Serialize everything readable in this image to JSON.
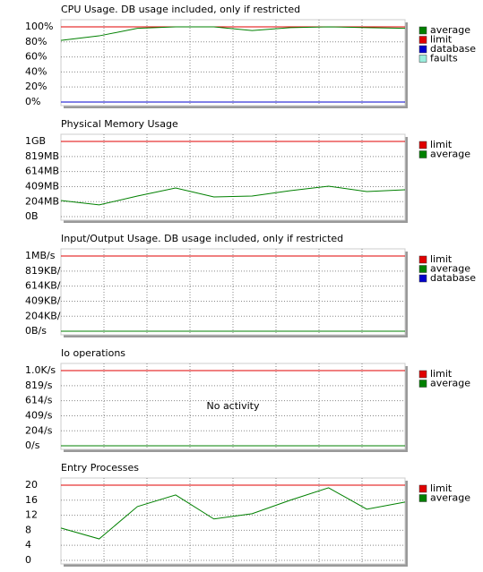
{
  "chart_data": [
    {
      "type": "line",
      "title": "CPU Usage. DB usage included, only if restricted",
      "categories": [
        null,
        null,
        null,
        null,
        null,
        null,
        null,
        null,
        null,
        null
      ],
      "series": [
        {
          "name": "average",
          "color": "#008000",
          "values": [
            82,
            88,
            98,
            100,
            100,
            95,
            99,
            100,
            99,
            98
          ]
        },
        {
          "name": "limit",
          "color": "#e00000",
          "values": [
            100,
            100,
            100,
            100,
            100,
            100,
            100,
            100,
            100,
            100
          ]
        },
        {
          "name": "database",
          "color": "#0000cc",
          "values": [
            0,
            0,
            0,
            0,
            0,
            0,
            0,
            0,
            0,
            0
          ]
        },
        {
          "name": "faults",
          "color": "#99eedd",
          "values": [
            0,
            0,
            0,
            0,
            0,
            0,
            0,
            0,
            0,
            0
          ]
        }
      ],
      "ylim": [
        -4.8,
        109.5
      ],
      "yticks": [
        {
          "value": 0,
          "label": "0%"
        },
        {
          "value": 20,
          "label": "20%"
        },
        {
          "value": 40,
          "label": "40%"
        },
        {
          "value": 60,
          "label": "60%"
        },
        {
          "value": 80,
          "label": "80%"
        },
        {
          "value": 100,
          "label": "100%"
        }
      ],
      "grid": true,
      "legend": "right"
    },
    {
      "type": "line",
      "title": "Physical Memory Usage",
      "categories": [
        null,
        null,
        null,
        null,
        null,
        null,
        null,
        null,
        null,
        null
      ],
      "series": [
        {
          "name": "limit",
          "color": "#e00000",
          "values": [
            1024,
            1024,
            1024,
            1024,
            1024,
            1024,
            1024,
            1024,
            1024,
            1024
          ]
        },
        {
          "name": "average",
          "color": "#008000",
          "values": [
            219,
            160,
            280,
            390,
            268,
            280,
            354,
            415,
            341,
            366
          ]
        }
      ],
      "ylim": [
        -49,
        1122
      ],
      "yticks": [
        {
          "value": 0,
          "label": "0B"
        },
        {
          "value": 204,
          "label": "204MB"
        },
        {
          "value": 409,
          "label": "409MB"
        },
        {
          "value": 614,
          "label": "614MB"
        },
        {
          "value": 819,
          "label": "819MB"
        },
        {
          "value": 1024,
          "label": "1GB"
        }
      ],
      "grid": true,
      "legend": "right"
    },
    {
      "type": "line",
      "title": "Input/Output Usage. DB usage included, only if restricted",
      "categories": [
        null,
        null,
        null,
        null,
        null,
        null,
        null,
        null,
        null,
        null
      ],
      "series": [
        {
          "name": "limit",
          "color": "#e00000",
          "values": [
            1024,
            1024,
            1024,
            1024,
            1024,
            1024,
            1024,
            1024,
            1024,
            1024
          ]
        },
        {
          "name": "average",
          "color": "#008000",
          "values": [
            0,
            0,
            0,
            0,
            0,
            0,
            0,
            0,
            0,
            0
          ]
        },
        {
          "name": "database",
          "color": "#0000cc",
          "values": [
            0,
            0,
            0,
            0,
            0,
            0,
            0,
            0,
            0,
            0
          ]
        }
      ],
      "ylim": [
        -49,
        1122
      ],
      "yticks": [
        {
          "value": 0,
          "label": "0B/s"
        },
        {
          "value": 204,
          "label": "204KB/s"
        },
        {
          "value": 409,
          "label": "409KB/s"
        },
        {
          "value": 614,
          "label": "614KB/s"
        },
        {
          "value": 819,
          "label": "819KB/s"
        },
        {
          "value": 1024,
          "label": "1MB/s"
        }
      ],
      "grid": true,
      "legend": "right"
    },
    {
      "type": "line",
      "title": "Io operations",
      "annotation": "No activity",
      "categories": [
        null,
        null,
        null,
        null,
        null,
        null,
        null,
        null,
        null,
        null
      ],
      "series": [
        {
          "name": "limit",
          "color": "#e00000",
          "values": [
            1024,
            1024,
            1024,
            1024,
            1024,
            1024,
            1024,
            1024,
            1024,
            1024
          ]
        },
        {
          "name": "average",
          "color": "#008000",
          "values": [
            0,
            0,
            0,
            0,
            0,
            0,
            0,
            0,
            0,
            0
          ]
        }
      ],
      "ylim": [
        -49,
        1122
      ],
      "yticks": [
        {
          "value": 0,
          "label": "0/s"
        },
        {
          "value": 204,
          "label": "204/s"
        },
        {
          "value": 409,
          "label": "409/s"
        },
        {
          "value": 614,
          "label": "614/s"
        },
        {
          "value": 819,
          "label": "819/s"
        },
        {
          "value": 1024,
          "label": "1.0K/s"
        }
      ],
      "grid": true,
      "legend": "right"
    },
    {
      "type": "line",
      "title": "Entry Processes",
      "categories": [
        null,
        null,
        null,
        null,
        null,
        null,
        null,
        null,
        null,
        null
      ],
      "series": [
        {
          "name": "limit",
          "color": "#e00000",
          "values": [
            20,
            20,
            20,
            20,
            20,
            20,
            20,
            20,
            20,
            20
          ]
        },
        {
          "name": "average",
          "color": "#008000",
          "values": [
            8.6,
            5.7,
            14.3,
            17.4,
            11,
            12.4,
            16,
            19.3,
            13.6,
            15.5
          ]
        }
      ],
      "ylim": [
        -0.96,
        21.9
      ],
      "yticks": [
        0,
        4,
        8,
        12,
        16,
        20
      ],
      "grid": true,
      "legend": "right"
    }
  ]
}
